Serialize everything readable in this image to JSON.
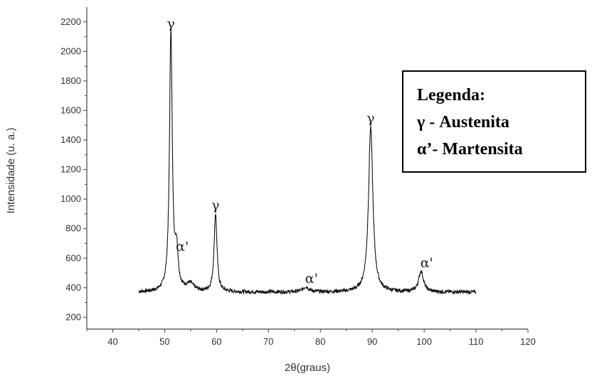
{
  "chart_data": {
    "type": "line",
    "xlabel": "2θ(graus)",
    "ylabel": "Intensidade (u. a.)",
    "xlim": [
      35,
      120
    ],
    "ylim": [
      120,
      2300
    ],
    "xticks": [
      40,
      50,
      60,
      70,
      80,
      90,
      100,
      110,
      120
    ],
    "yticks": [
      200,
      400,
      600,
      800,
      1000,
      1200,
      1400,
      1600,
      1800,
      2000,
      2200
    ],
    "grid": false,
    "series": [
      {
        "baseline": 370,
        "x_range": [
          45,
          110
        ],
        "color": "#111111",
        "peaks": [
          {
            "x": 51.2,
            "y": 2130
          },
          {
            "x": 52.3,
            "y": 620
          },
          {
            "x": 54.9,
            "y": 420
          },
          {
            "x": 59.8,
            "y": 900
          },
          {
            "x": 77.2,
            "y": 405
          },
          {
            "x": 89.7,
            "y": 1490
          },
          {
            "x": 99.4,
            "y": 510
          }
        ]
      }
    ],
    "annotations": [
      {
        "text": "γ",
        "x": 51.2,
        "y": 2130
      },
      {
        "text": "α'",
        "x": 52.3,
        "y": 620
      },
      {
        "text": "γ",
        "x": 59.8,
        "y": 900
      },
      {
        "text": "α'",
        "x": 77.2,
        "y": 405
      },
      {
        "text": "γ",
        "x": 89.7,
        "y": 1490
      },
      {
        "text": "α'",
        "x": 99.4,
        "y": 510
      }
    ],
    "legend": {
      "placement": "right",
      "lines": [
        "Legenda:",
        "γ - Austenita",
        "α’- Martensita"
      ]
    }
  }
}
